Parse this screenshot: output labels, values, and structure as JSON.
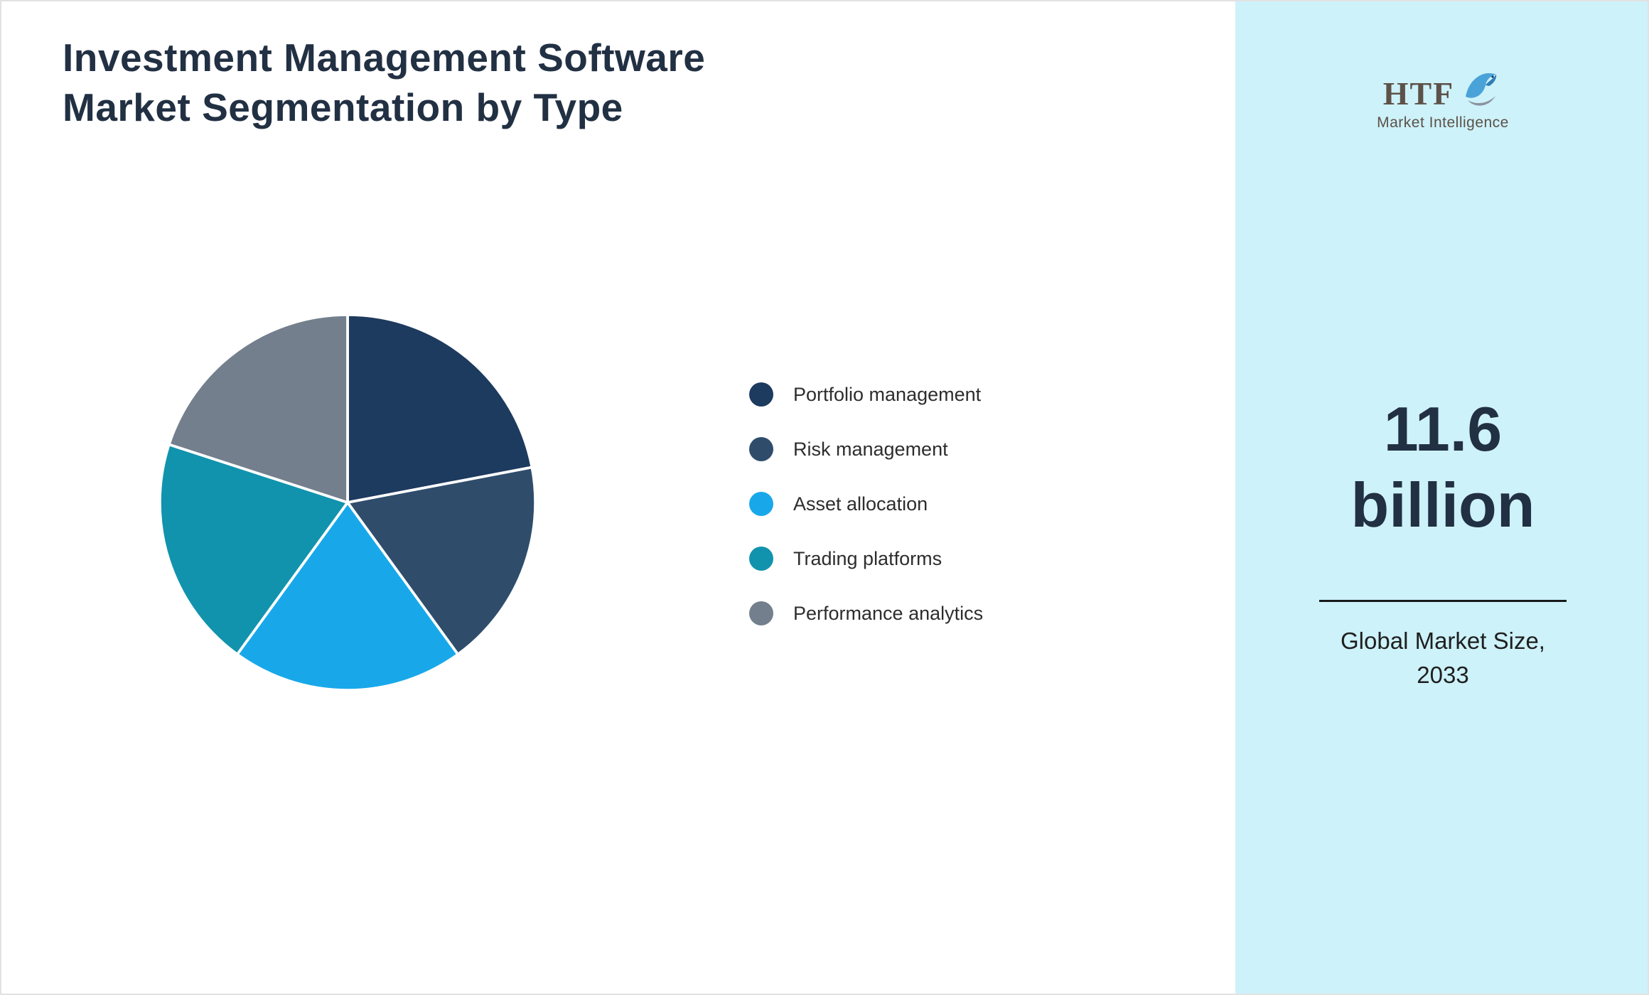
{
  "title": {
    "line1": "Investment Management Software",
    "line2": "Market Segmentation by Type"
  },
  "chart_data": {
    "type": "pie",
    "title": "Investment Management Software Market Segmentation by Type",
    "labels": [
      "Portfolio management",
      "Risk management",
      "Asset allocation",
      "Trading platforms",
      "Performance analytics"
    ],
    "values": [
      22,
      18,
      20,
      20,
      20
    ],
    "unit": "percent",
    "colors": [
      "#1d3a5f",
      "#2f4d6b",
      "#18a8ea",
      "#1193ad",
      "#747f8d"
    ],
    "start_angle_deg": 0,
    "direction": "clockwise",
    "legend_position": "right",
    "slice_border_color": "#ffffff"
  },
  "sidebar": {
    "background_color": "#cdf2f9",
    "logo": {
      "text": "HTF",
      "subtext": "Market Intelligence",
      "icon": "dolphin-icon"
    },
    "market_size": {
      "line1": "11.6",
      "line2": "billion"
    },
    "caption": {
      "line1": "Global Market Size,",
      "line2": "2033"
    }
  }
}
